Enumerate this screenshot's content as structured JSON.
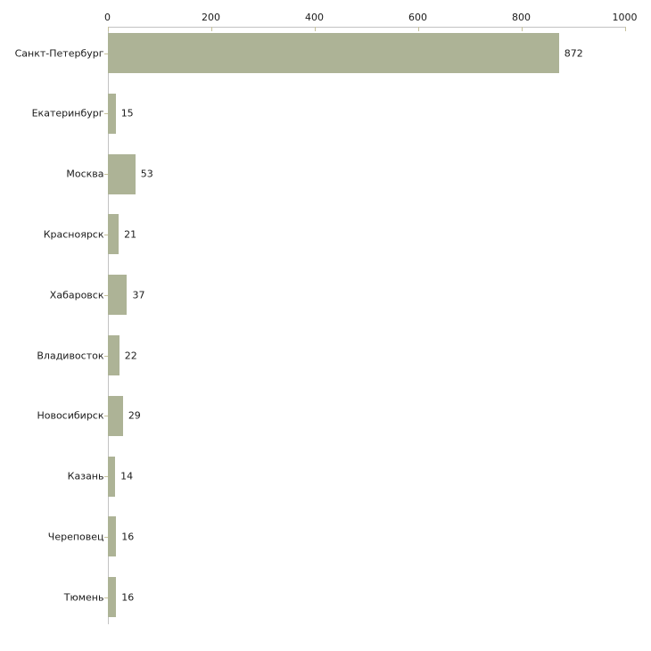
{
  "chart_data": {
    "type": "bar",
    "orientation": "horizontal",
    "title": "",
    "xlabel": "",
    "ylabel": "",
    "categories": [
      "Санкт-Петербург",
      "Екатеринбург",
      "Москва",
      "Красноярск",
      "Хабаровск",
      "Владивосток",
      "Новосибирск",
      "Казань",
      "Череповец",
      "Тюмень"
    ],
    "values": [
      872,
      15,
      53,
      21,
      37,
      22,
      29,
      14,
      16,
      16
    ],
    "value_labels": [
      "872",
      "15",
      "53",
      "21",
      "37",
      "22",
      "29",
      "14",
      "16",
      "16"
    ],
    "xlim": [
      0,
      1000
    ],
    "x_ticks": [
      0,
      200,
      400,
      600,
      800,
      1000
    ],
    "x_tick_labels": [
      "0",
      "200",
      "400",
      "600",
      "800",
      "1000"
    ],
    "x_axis_position": "top",
    "grid": "off",
    "legend": "none",
    "value_labels_shown": true,
    "colors": {
      "bar": "#adb396",
      "axis_line": "#c3c3c3",
      "tick_mark": "#c6c19b",
      "text": "#1a1a1a",
      "background": "#ffffff"
    }
  }
}
